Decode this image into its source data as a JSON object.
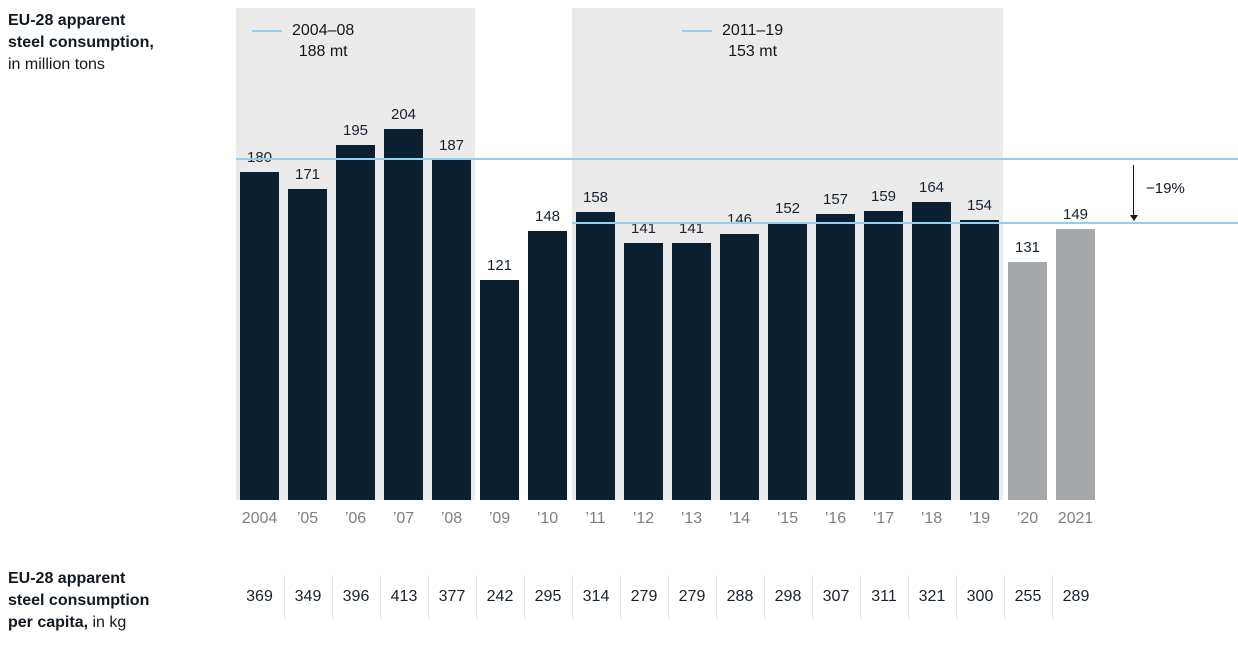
{
  "title": {
    "line1": "EU-28 apparent",
    "line2": "steel consumption,",
    "line3": "in million tons"
  },
  "per_capita_title": {
    "line1": "EU-28 apparent",
    "line2": "steel consumption",
    "line3_bold": "per capita,",
    "line3_regular": "in kg"
  },
  "chart_data": {
    "type": "bar",
    "title": "EU-28 apparent steel consumption, in million tons",
    "categories": [
      "2004",
      "’05",
      "’06",
      "’07",
      "’08",
      "’09",
      "’10",
      "’11",
      "’12",
      "’13",
      "’14",
      "’15",
      "’16",
      "’17",
      "’18",
      "’19",
      "’20",
      "2021"
    ],
    "values": [
      180,
      171,
      195,
      204,
      187,
      121,
      148,
      158,
      141,
      141,
      146,
      152,
      157,
      159,
      164,
      154,
      131,
      149
    ],
    "ylim": [
      0,
      270
    ],
    "grid": false,
    "gray_from_index": 16,
    "averages": [
      {
        "label_period": "2004–08",
        "label_value": "188 mt",
        "value": 188,
        "band_start_index": 0,
        "band_end_index": 4
      },
      {
        "label_period": "2011–19",
        "label_value": "153 mt",
        "value": 153,
        "band_start_index": 7,
        "band_end_index": 15
      }
    ],
    "annotation": {
      "label": "−19%"
    },
    "per_capita": {
      "title": "EU-28 apparent steel consumption per capita, in kg",
      "values": [
        369,
        349,
        396,
        413,
        377,
        242,
        295,
        314,
        279,
        279,
        288,
        298,
        307,
        311,
        321,
        300,
        255,
        289
      ]
    }
  },
  "colors": {
    "bar_dark": "#0a1f30",
    "bar_gray": "#a5a9ab",
    "band_bg": "#ebebeb",
    "avg_line": "#8fd1f2",
    "axis_label": "#7c8084",
    "value_label": "#18222c",
    "arrow": "#1a1a1a",
    "separator": "#e3e3e3",
    "text": "#101820"
  }
}
